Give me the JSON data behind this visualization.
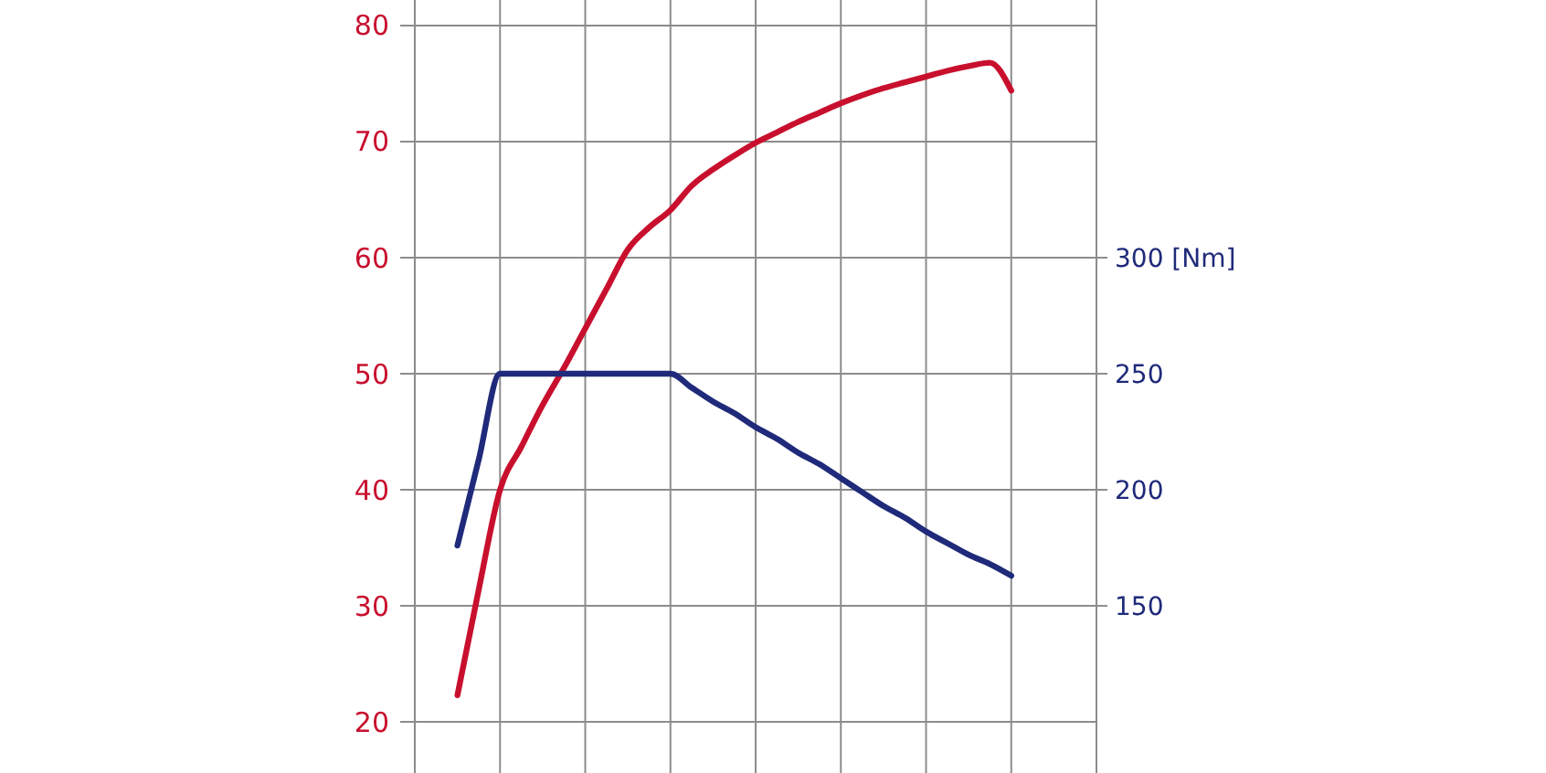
{
  "chart_data": {
    "type": "line",
    "categories": [
      null,
      null,
      null,
      null,
      null,
      null,
      null,
      null,
      null,
      null,
      null,
      null,
      null,
      null,
      null,
      null,
      null,
      null,
      null,
      null,
      null,
      null,
      null,
      null,
      null,
      null,
      null,
      null,
      null,
      null,
      null,
      null,
      null
    ],
    "series": [
      {
        "color": "#c8102e",
        "values": [
          null,
          null,
          22.3,
          31.4,
          40.0,
          43.7,
          47.3,
          50.5,
          53.9,
          57.3,
          60.7,
          62.6,
          64.1,
          66.2,
          67.6,
          68.8,
          69.9,
          70.8,
          71.7,
          72.5,
          73.3,
          74.0,
          74.6,
          75.1,
          75.6,
          76.1,
          76.5,
          76.8,
          74.4,
          null,
          null,
          null,
          null
        ]
      },
      {
        "color": "#1f2a7a",
        "axis": "y2",
        "values": [
          null,
          null,
          176,
          213,
          250,
          250,
          250,
          250,
          250,
          250,
          250,
          250,
          250,
          244,
          238,
          233,
          227,
          222,
          216,
          211,
          205,
          199,
          193,
          188,
          182,
          177,
          172,
          168,
          163,
          null,
          null,
          null,
          null
        ]
      }
    ],
    "ylim": [
      15.6,
      82.2
    ],
    "yticks": [
      20,
      30,
      40,
      50,
      60,
      70,
      80
    ],
    "y2lim": [
      78,
      411
    ],
    "y2ticks": [
      150,
      200,
      250,
      {
        "value": 300,
        "label": "300 [Nm]"
      }
    ],
    "grid": true,
    "tick_labels": "y",
    "line_style": "solid",
    "marker": "none"
  }
}
